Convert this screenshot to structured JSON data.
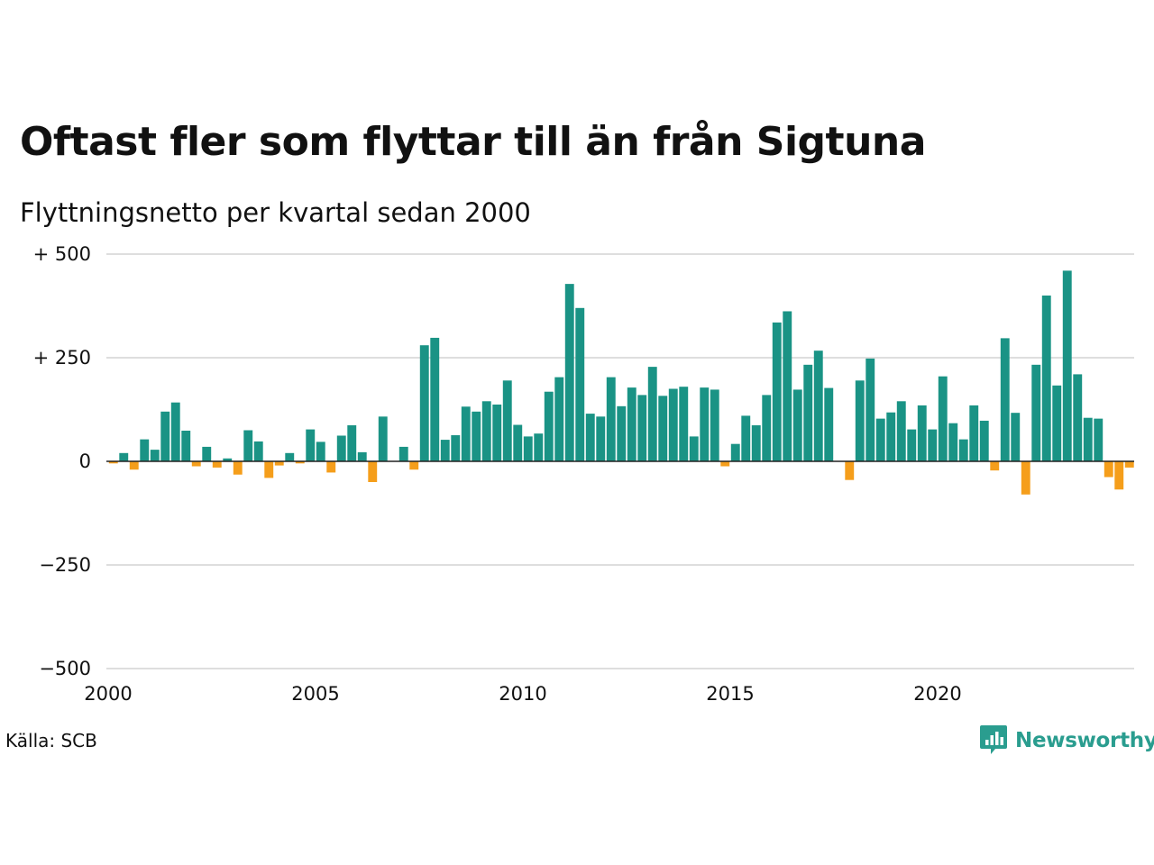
{
  "title": "Oftast fler som flyttar till än från Sigtuna",
  "subtitle": "Flyttningsnetto per kvartal sedan 2000",
  "source": "Källa: SCB",
  "logo": {
    "text": "Newsworthy",
    "icon": "newsworthy-logo-icon",
    "color": "#2a9d8f"
  },
  "colors": {
    "positive": "#1a9385",
    "negative": "#f59e1b",
    "grid": "#dedede",
    "baseline": "#222222"
  },
  "chart_data": {
    "type": "bar",
    "title": "Oftast fler som flyttar till än från Sigtuna",
    "subtitle": "Flyttningsnetto per kvartal sedan 2000",
    "xlabel": "",
    "ylabel": "",
    "ylim": [
      -500,
      500
    ],
    "xlim": [
      2000,
      2024.75
    ],
    "grid": true,
    "y_ticks": [
      500,
      250,
      0,
      -250,
      -500
    ],
    "y_tick_labels": [
      "+ 500",
      "+ 250",
      "0",
      "−250",
      "−500"
    ],
    "x_ticks": [
      2000,
      2005,
      2010,
      2015,
      2020
    ],
    "x_tick_labels": [
      "2000",
      "2005",
      "2010",
      "2015",
      "2020"
    ],
    "start_year": 2000,
    "values": [
      -5,
      20,
      -20,
      53,
      28,
      120,
      142,
      74,
      -12,
      35,
      -15,
      7,
      -32,
      75,
      48,
      -40,
      -10,
      20,
      -5,
      77,
      47,
      -27,
      62,
      87,
      22,
      -50,
      108,
      0,
      35,
      -20,
      280,
      298,
      52,
      63,
      132,
      120,
      145,
      137,
      195,
      88,
      60,
      67,
      168,
      203,
      428,
      370,
      115,
      108,
      203,
      133,
      178,
      160,
      228,
      158,
      175,
      180,
      60,
      178,
      173,
      -12,
      42,
      110,
      87,
      160,
      335,
      362,
      173,
      233,
      267,
      177,
      0,
      -45,
      195,
      248,
      103,
      118,
      145,
      77,
      135,
      77,
      205,
      92,
      53,
      135,
      98,
      -22,
      297,
      117,
      -80,
      233,
      400,
      183,
      460,
      210,
      105,
      103,
      -38,
      -68,
      -15
    ]
  }
}
